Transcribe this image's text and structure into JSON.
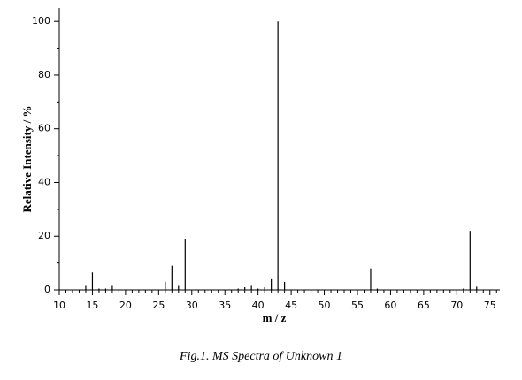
{
  "chart_data": {
    "type": "stem",
    "caption": "Fig.1. MS Spectra of Unknown 1",
    "x_label": "m / z",
    "y_label": "Relative Intensity / %",
    "color": "#000000",
    "x": [
      14,
      15,
      16,
      17,
      18,
      26,
      27,
      28,
      29,
      37,
      38,
      39,
      40,
      41,
      42,
      43,
      44,
      57,
      58,
      71,
      72,
      73
    ],
    "values": [
      1.5,
      6.5,
      0.5,
      0.5,
      1.5,
      3,
      9,
      1.5,
      19,
      0.5,
      1,
      1.5,
      0.5,
      1,
      4,
      100,
      3,
      8,
      0.5,
      0.5,
      22,
      1.2
    ],
    "xlim": [
      10,
      76.5
    ],
    "ylim": [
      0,
      105
    ],
    "xticks": [
      10,
      15,
      20,
      25,
      30,
      35,
      40,
      45,
      50,
      55,
      60,
      65,
      70,
      75
    ],
    "xminorticks": [
      11,
      12,
      13,
      14,
      16,
      17,
      18,
      19,
      21,
      22,
      23,
      24,
      26,
      27,
      28,
      29,
      31,
      32,
      33,
      34,
      36,
      37,
      38,
      39,
      41,
      42,
      43,
      44,
      46,
      47,
      48,
      49,
      51,
      52,
      53,
      54,
      56,
      57,
      58,
      59,
      61,
      62,
      63,
      64,
      66,
      67,
      68,
      69,
      71,
      72,
      73,
      74,
      76
    ],
    "yticks": [
      0,
      20,
      40,
      60,
      80,
      100
    ],
    "yminorticks": [
      10,
      30,
      50,
      70,
      90
    ]
  }
}
